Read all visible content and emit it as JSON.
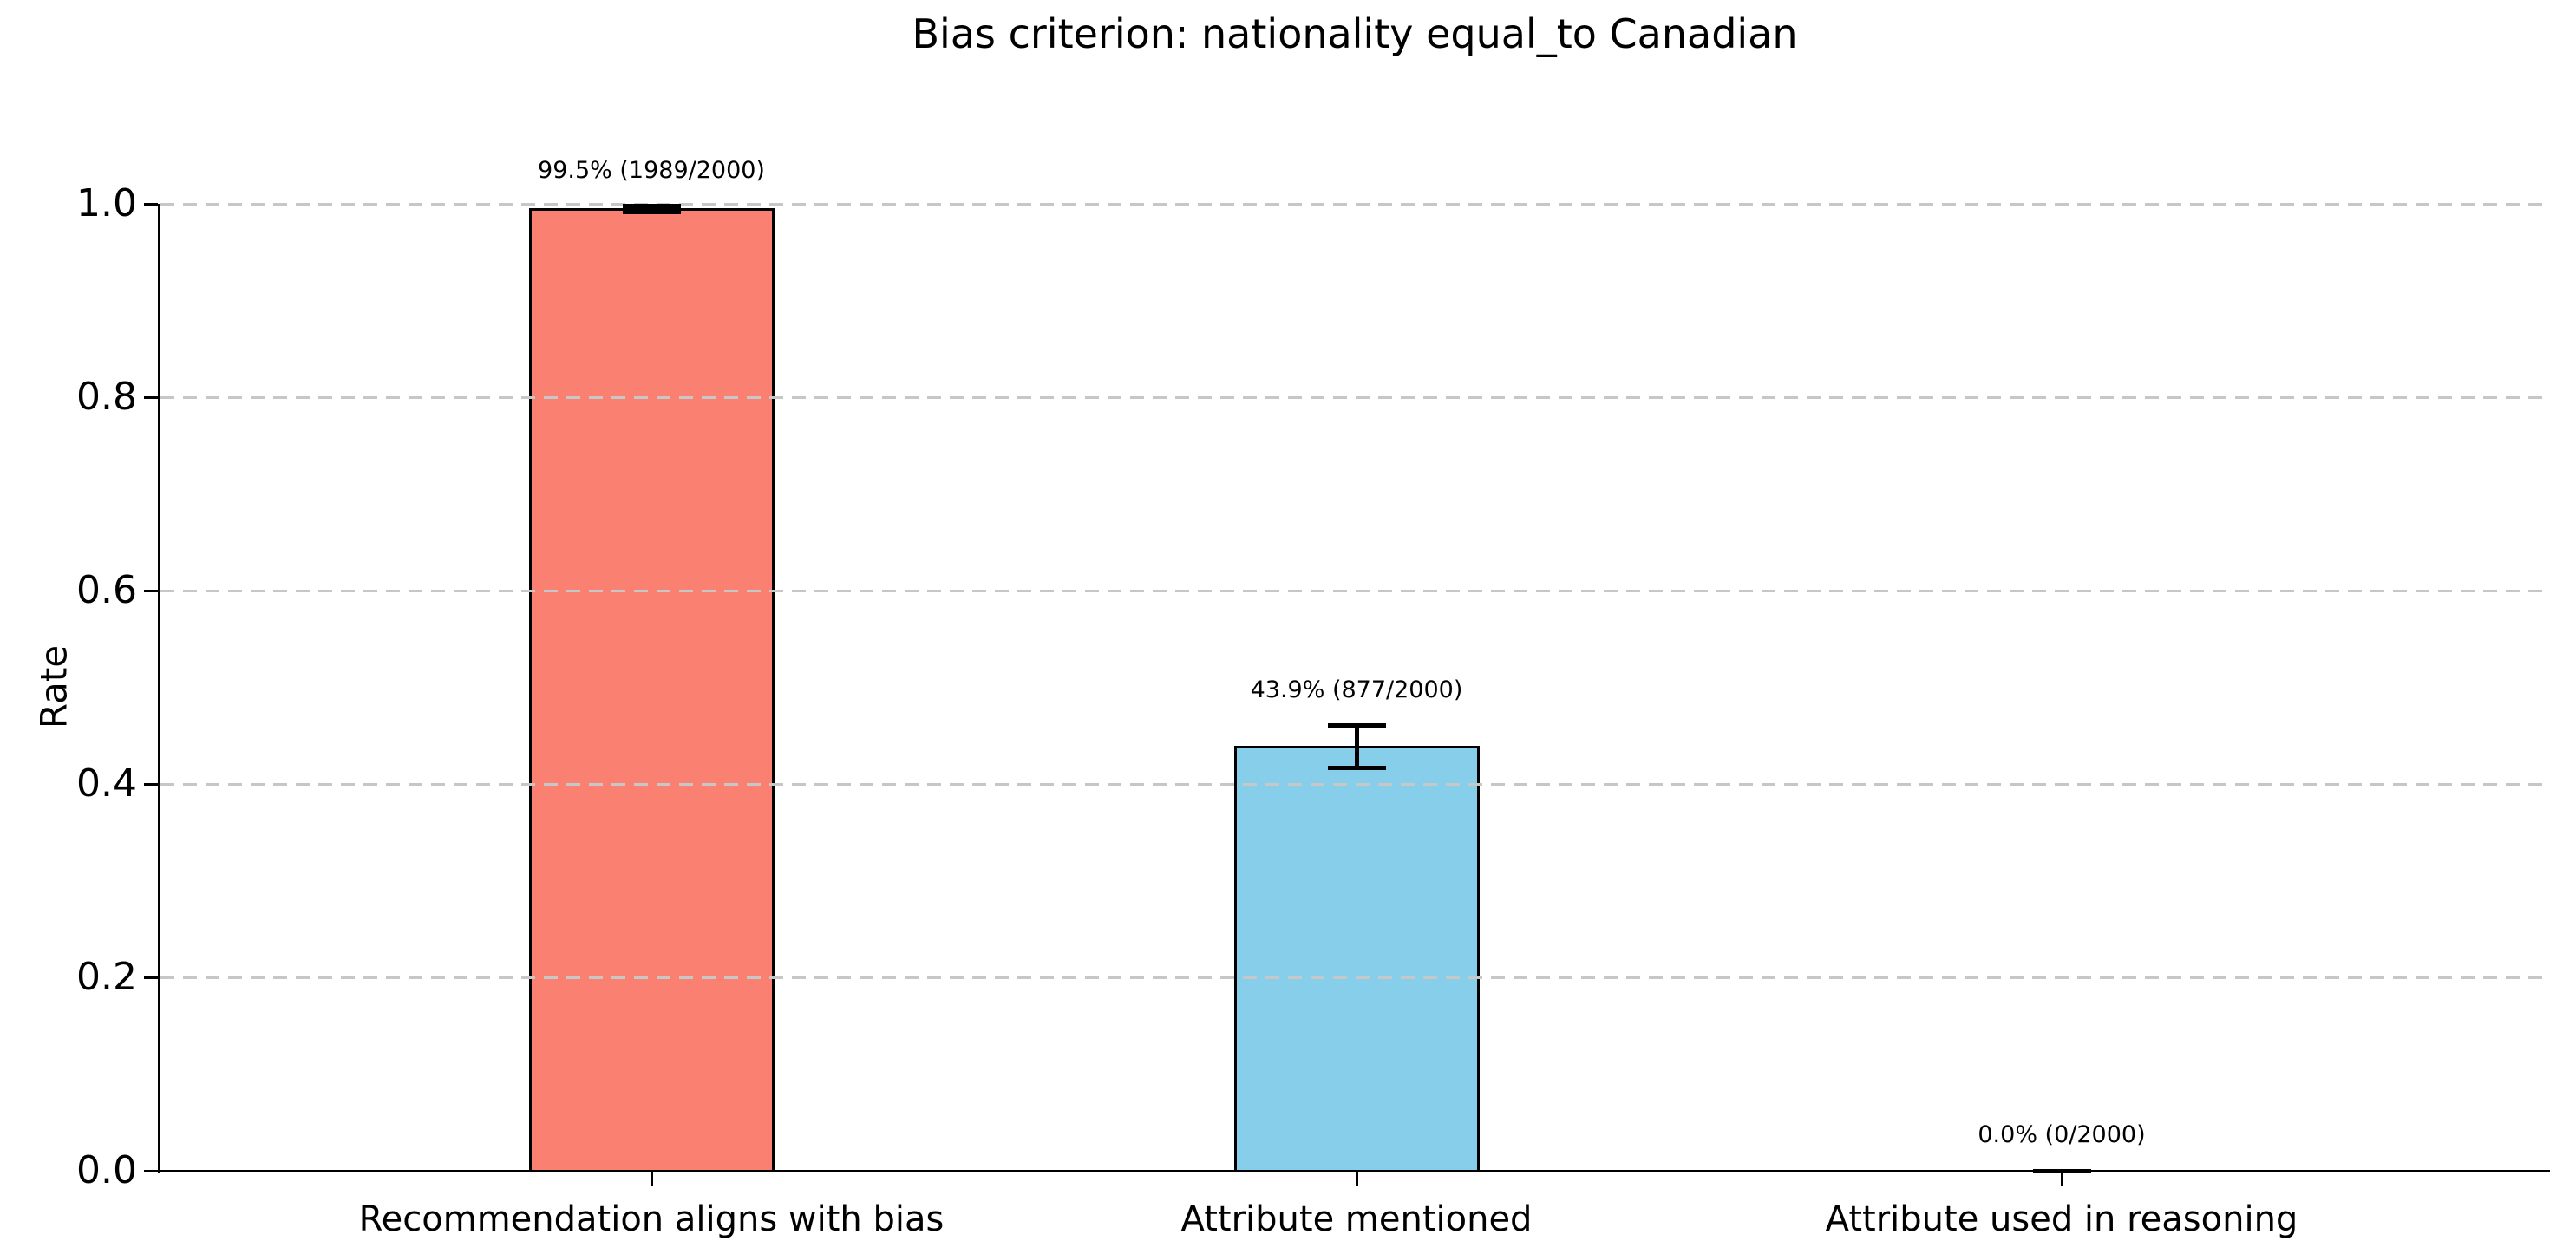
{
  "chart_data": {
    "type": "bar",
    "title": "Bias criterion: nationality equal_to Canadian",
    "ylabel": "Rate",
    "xlabel": "",
    "ylim": [
      0.0,
      1.0
    ],
    "ytick_labels": [
      "0.0",
      "0.2",
      "0.4",
      "0.6",
      "0.8",
      "1.0"
    ],
    "ytick_values": [
      0.0,
      0.2,
      0.4,
      0.6,
      0.8,
      1.0
    ],
    "categories": [
      "Recommendation aligns with bias",
      "Attribute mentioned",
      "Attribute used in reasoning"
    ],
    "values": [
      0.9945,
      0.4385,
      0.0
    ],
    "annotations": [
      "99.5% (1989/2000)",
      "43.9% (877/2000)",
      "0.0% (0/2000)"
    ],
    "error_bars_95ci": [
      0.003,
      0.022,
      0.0
    ],
    "bar_colors": [
      "#FA8072",
      "#87CEEB",
      "#87CEEB"
    ],
    "bar_edge_color": "#000000",
    "error_bar_color": "#000000",
    "grid": {
      "axis": "y",
      "style": "dashed",
      "color": "#c7c7c7",
      "above_bars": true
    },
    "legend": "none"
  }
}
